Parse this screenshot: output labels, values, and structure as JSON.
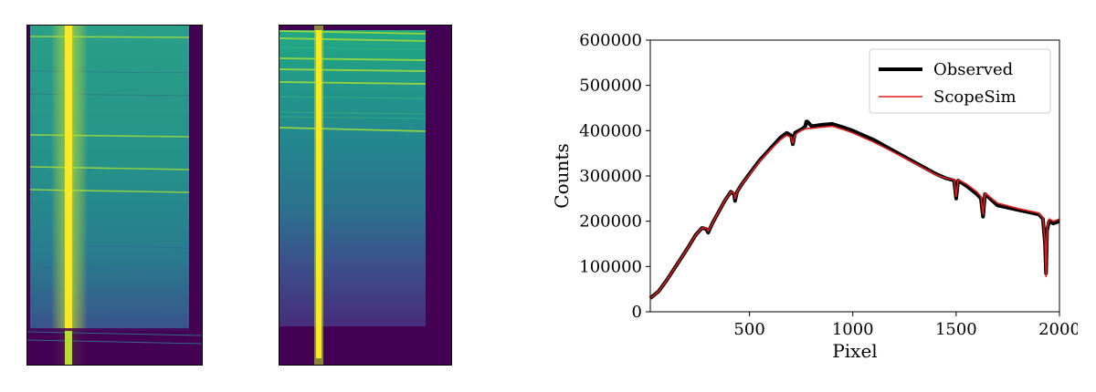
{
  "colors": {
    "background_dark": "#440154",
    "continuum_mid": "#21908c",
    "continuum_bright": "#35b779",
    "trace_yellow": "#fde725",
    "line_green": "#a0da39",
    "observed": "#000000",
    "scopesim": "#e31a1c"
  },
  "images": [
    {
      "name": "spectrum-image-left"
    },
    {
      "name": "spectrum-image-right"
    }
  ],
  "chart_data": {
    "type": "line",
    "title": "",
    "xlabel": "Pixel",
    "ylabel": "Counts",
    "xlim": [
      20,
      2000
    ],
    "ylim": [
      0,
      600000
    ],
    "x_ticks": [
      500,
      1000,
      1500,
      2000
    ],
    "y_ticks": [
      0,
      100000,
      200000,
      300000,
      400000,
      500000,
      600000
    ],
    "grid": false,
    "legend_position": "top-right",
    "series": [
      {
        "name": "Observed",
        "color": "#000000",
        "x": [
          20,
          60,
          100,
          150,
          200,
          240,
          270,
          290,
          300,
          320,
          350,
          380,
          410,
          425,
          430,
          440,
          460,
          500,
          550,
          600,
          650,
          680,
          700,
          710,
          720,
          740,
          760,
          770,
          775,
          780,
          800,
          850,
          900,
          950,
          1000,
          1100,
          1200,
          1300,
          1400,
          1450,
          1490,
          1500,
          1510,
          1550,
          1600,
          1620,
          1630,
          1640,
          1700,
          1800,
          1900,
          1920,
          1930,
          1935,
          1940,
          1950,
          1970,
          2000
        ],
        "y": [
          30000,
          45000,
          70000,
          105000,
          140000,
          170000,
          185000,
          183000,
          175000,
          195000,
          220000,
          245000,
          265000,
          260000,
          245000,
          265000,
          280000,
          305000,
          335000,
          360000,
          385000,
          395000,
          390000,
          370000,
          395000,
          400000,
          405000,
          410000,
          420000,
          420000,
          410000,
          413000,
          415000,
          408000,
          400000,
          380000,
          355000,
          330000,
          305000,
          295000,
          290000,
          250000,
          290000,
          278000,
          260000,
          250000,
          210000,
          260000,
          235000,
          225000,
          215000,
          205000,
          150000,
          85000,
          180000,
          200000,
          195000,
          200000
        ]
      },
      {
        "name": "ScopeSim",
        "color": "#e31a1c",
        "x": [
          20,
          60,
          100,
          150,
          200,
          240,
          270,
          290,
          300,
          320,
          350,
          380,
          410,
          425,
          430,
          440,
          460,
          500,
          550,
          600,
          650,
          680,
          700,
          710,
          720,
          740,
          760,
          780,
          800,
          850,
          900,
          950,
          1000,
          1100,
          1200,
          1300,
          1400,
          1450,
          1490,
          1500,
          1510,
          1550,
          1600,
          1620,
          1630,
          1640,
          1700,
          1800,
          1900,
          1920,
          1930,
          1935,
          1940,
          1950,
          1970,
          2000
        ],
        "y": [
          30000,
          45000,
          70000,
          105000,
          140000,
          170000,
          185000,
          185000,
          178000,
          195000,
          220000,
          245000,
          265000,
          262000,
          250000,
          265000,
          280000,
          303000,
          333000,
          357000,
          380000,
          390000,
          385000,
          372000,
          390000,
          398000,
          402000,
          405000,
          405000,
          408000,
          410000,
          403000,
          395000,
          375000,
          352000,
          328000,
          303000,
          295000,
          292000,
          255000,
          292000,
          282000,
          265000,
          255000,
          215000,
          262000,
          240000,
          228000,
          218000,
          208000,
          155000,
          78000,
          185000,
          205000,
          200000,
          205000
        ]
      }
    ]
  }
}
